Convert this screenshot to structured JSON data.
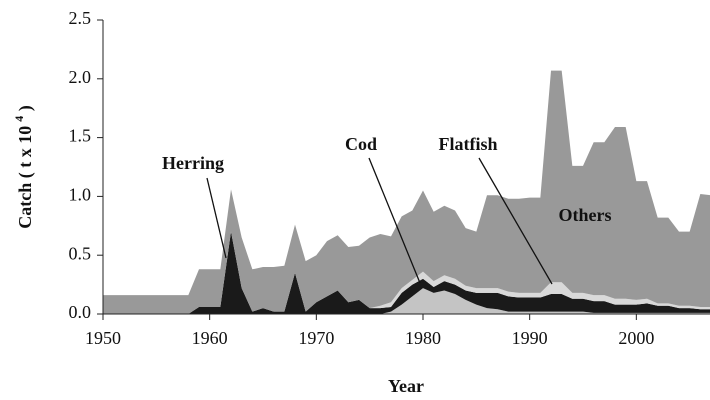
{
  "chart_data": {
    "type": "stacked_area",
    "xlabel": "Year",
    "ylabel": "Catch ( t x 10",
    "ylabel_sup": "4",
    "ylabel_end": " )",
    "x": [
      1950,
      1951,
      1952,
      1953,
      1954,
      1955,
      1956,
      1957,
      1958,
      1959,
      1960,
      1961,
      1962,
      1963,
      1964,
      1965,
      1966,
      1967,
      1968,
      1969,
      1970,
      1971,
      1972,
      1973,
      1974,
      1975,
      1976,
      1977,
      1978,
      1979,
      1980,
      1981,
      1982,
      1983,
      1984,
      1985,
      1986,
      1987,
      1988,
      1989,
      1990,
      1991,
      1992,
      1993,
      1994,
      1995,
      1996,
      1997,
      1998,
      1999,
      2000,
      2001,
      2002,
      2003,
      2004,
      2005,
      2006,
      2007
    ],
    "series": [
      {
        "name": "Cod",
        "color": "#c4c4c4",
        "values": [
          0,
          0,
          0,
          0,
          0,
          0,
          0,
          0,
          0,
          0,
          0,
          0,
          0,
          0,
          0,
          0,
          0,
          0,
          0,
          0,
          0,
          0,
          0,
          0,
          0,
          0,
          0,
          0.02,
          0.08,
          0.15,
          0.22,
          0.18,
          0.2,
          0.17,
          0.12,
          0.08,
          0.05,
          0.04,
          0.02,
          0.02,
          0.02,
          0.02,
          0.02,
          0.02,
          0.02,
          0.02,
          0.01,
          0.01,
          0.01,
          0.01,
          0.01,
          0.01,
          0.01,
          0.01,
          0.01,
          0.01,
          0.01,
          0.01
        ]
      },
      {
        "name": "Herring",
        "color": "#1a1a1a",
        "values": [
          0,
          0,
          0,
          0,
          0,
          0,
          0,
          0,
          0,
          0.06,
          0.06,
          0.06,
          0.7,
          0.22,
          0.02,
          0.05,
          0.02,
          0.02,
          0.35,
          0.02,
          0.1,
          0.15,
          0.2,
          0.1,
          0.12,
          0.05,
          0.05,
          0.04,
          0.1,
          0.1,
          0.08,
          0.05,
          0.08,
          0.08,
          0.08,
          0.1,
          0.13,
          0.14,
          0.13,
          0.12,
          0.12,
          0.12,
          0.15,
          0.15,
          0.11,
          0.11,
          0.1,
          0.1,
          0.07,
          0.07,
          0.07,
          0.08,
          0.06,
          0.06,
          0.04,
          0.04,
          0.03,
          0.03
        ]
      },
      {
        "name": "Flatfish",
        "color": "#d9d9d9",
        "values": [
          0,
          0,
          0,
          0,
          0,
          0,
          0,
          0,
          0,
          0,
          0,
          0,
          0,
          0,
          0,
          0,
          0,
          0,
          0,
          0,
          0,
          0,
          0,
          0,
          0,
          0,
          0.02,
          0.04,
          0.04,
          0.04,
          0.06,
          0.05,
          0.05,
          0.05,
          0.04,
          0.04,
          0.04,
          0.04,
          0.04,
          0.04,
          0.04,
          0.04,
          0.1,
          0.1,
          0.05,
          0.05,
          0.05,
          0.05,
          0.05,
          0.05,
          0.04,
          0.04,
          0.02,
          0.02,
          0.02,
          0.02,
          0.02,
          0.02
        ]
      },
      {
        "name": "Others",
        "color": "#999999",
        "values": [
          0.16,
          0.16,
          0.16,
          0.16,
          0.16,
          0.16,
          0.16,
          0.16,
          0.16,
          0.32,
          0.32,
          0.32,
          0.36,
          0.43,
          0.36,
          0.35,
          0.38,
          0.39,
          0.41,
          0.43,
          0.4,
          0.47,
          0.47,
          0.47,
          0.46,
          0.6,
          0.61,
          0.56,
          0.61,
          0.59,
          0.69,
          0.59,
          0.59,
          0.58,
          0.49,
          0.48,
          0.79,
          0.79,
          0.79,
          0.8,
          0.81,
          0.81,
          1.8,
          1.8,
          1.08,
          1.08,
          1.3,
          1.3,
          1.46,
          1.46,
          1.01,
          1.0,
          0.73,
          0.73,
          0.63,
          0.63,
          0.96,
          0.95
        ]
      }
    ],
    "xlim": [
      1950,
      2007
    ],
    "xticks": [
      1950,
      1960,
      1970,
      1980,
      1990,
      2000
    ],
    "ylim": [
      0,
      2.5
    ],
    "yticks": [
      {
        "value": 0,
        "label": "0.0"
      },
      0.5,
      {
        "value": 1,
        "label": "1.0"
      },
      1.5,
      {
        "value": 2,
        "label": "2.0"
      },
      2.5
    ],
    "grid": false
  }
}
